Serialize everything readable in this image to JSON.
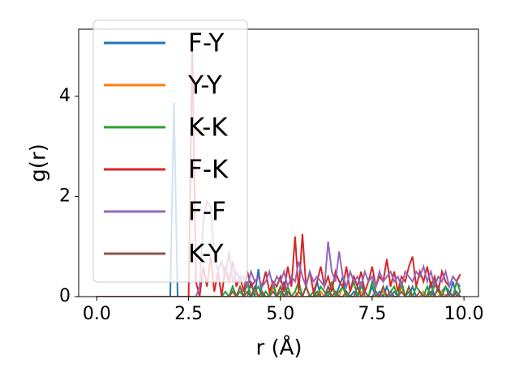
{
  "chart_data": {
    "type": "line",
    "xlabel": "r (Å)",
    "ylabel": "g(r)",
    "x": [
      0.0,
      0.1,
      0.2,
      0.3,
      0.4,
      0.5,
      0.6,
      0.7,
      0.8,
      0.9,
      1.0,
      1.1,
      1.2,
      1.3,
      1.4,
      1.5,
      1.6,
      1.7,
      1.8,
      1.9,
      2.0,
      2.1,
      2.2,
      2.3,
      2.4,
      2.5,
      2.6,
      2.7,
      2.8,
      2.9,
      3.0,
      3.1,
      3.2,
      3.3,
      3.4,
      3.5,
      3.6,
      3.7,
      3.8,
      3.9,
      4.0,
      4.1,
      4.2,
      4.3,
      4.4,
      4.5,
      4.6,
      4.7,
      4.8,
      4.9,
      5.0,
      5.1,
      5.2,
      5.3,
      5.4,
      5.5,
      5.6,
      5.7,
      5.8,
      5.9,
      6.0,
      6.1,
      6.2,
      6.3,
      6.4,
      6.5,
      6.6,
      6.7,
      6.8,
      6.9,
      7.0,
      7.1,
      7.2,
      7.3,
      7.4,
      7.5,
      7.6,
      7.7,
      7.8,
      7.9,
      8.0,
      8.1,
      8.2,
      8.3,
      8.4,
      8.5,
      8.6,
      8.7,
      8.8,
      8.9,
      9.0,
      9.1,
      9.2,
      9.3,
      9.4,
      9.5,
      9.6,
      9.7,
      9.8,
      9.9
    ],
    "series": [
      {
        "name": "F-Y",
        "color": "#1f77b4",
        "values": [
          0,
          0,
          0,
          0,
          0,
          0,
          0,
          0,
          0,
          0,
          0,
          0,
          0,
          0,
          0,
          0,
          0,
          0,
          0,
          0,
          0,
          3.87,
          0,
          0,
          0,
          0,
          0,
          0,
          0,
          0,
          0,
          0,
          0,
          0,
          0,
          0,
          0,
          0.2,
          0,
          0,
          0,
          0,
          0.3,
          0,
          0.55,
          0,
          0.1,
          0,
          0.2,
          0,
          0,
          0.3,
          0,
          0,
          0,
          0.1,
          0,
          0.2,
          0,
          0,
          0.3,
          0,
          0,
          0.1,
          0,
          0,
          0.2,
          0.4,
          0,
          0,
          0.1,
          0,
          0.3,
          0,
          0,
          0.2,
          0,
          0.1,
          0,
          0.2,
          0,
          0.1,
          0,
          0.3,
          0,
          0,
          0.2,
          0,
          0,
          0.1,
          0,
          0.3,
          0,
          0,
          0.1,
          0.2,
          0,
          0.3,
          0,
          0.1
        ]
      },
      {
        "name": "Y-Y",
        "color": "#ff7f0e",
        "values": [
          0,
          0,
          0,
          0,
          0,
          0,
          0,
          0,
          0,
          0,
          0,
          0,
          0,
          0,
          0,
          0,
          0,
          0,
          0,
          0,
          0,
          0,
          0,
          0,
          0,
          0,
          0,
          0,
          0,
          0,
          0,
          0,
          0,
          0,
          0,
          0,
          0,
          0,
          0,
          0,
          0,
          0,
          0,
          0.1,
          0,
          0,
          0,
          0,
          0.2,
          0,
          0,
          0,
          0,
          0,
          0.1,
          0,
          0,
          0,
          0,
          0,
          0,
          0.1,
          0,
          0,
          0,
          0,
          0,
          0.2,
          0,
          0,
          0,
          0,
          0.1,
          0,
          0,
          0,
          0,
          0,
          0.1,
          0,
          0,
          0,
          0,
          0.2,
          0,
          0,
          0,
          0,
          0,
          0.1,
          0,
          0,
          0,
          0,
          0.1,
          0,
          0,
          0,
          0,
          0
        ]
      },
      {
        "name": "K-K",
        "color": "#2ca02c",
        "values": [
          0,
          0,
          0,
          0,
          0,
          0,
          0,
          0,
          0,
          0,
          0,
          0,
          0,
          0,
          0,
          0,
          0,
          0,
          0,
          0,
          0,
          0,
          0,
          0,
          0,
          0,
          0,
          0,
          0,
          0,
          0,
          0,
          0,
          0,
          0,
          0.1,
          0,
          0.2,
          0,
          0.1,
          0,
          0.3,
          0,
          0.1,
          0.2,
          0,
          0.1,
          0,
          0.3,
          0,
          0.1,
          0,
          0.2,
          0,
          0.1,
          0.3,
          0,
          0.2,
          0,
          0.1,
          0,
          0.2,
          0.1,
          0,
          0.3,
          0,
          0.1,
          0.2,
          0,
          0.1,
          0.3,
          0,
          0.2,
          0.1,
          0,
          0.3,
          0.1,
          0,
          0.2,
          0,
          0.1,
          0.2,
          0,
          0.3,
          0,
          0.1,
          0,
          0.2,
          0.1,
          0,
          0.2,
          0,
          0.3,
          0.1,
          0,
          0.2,
          0.1,
          0,
          0.3,
          0.1
        ]
      },
      {
        "name": "F-K",
        "color": "#d62728",
        "values": [
          0,
          0,
          0,
          0,
          0,
          0,
          0,
          0,
          0,
          0,
          0,
          0,
          0,
          0,
          0,
          0,
          0,
          0,
          0,
          0,
          0,
          0,
          0,
          0,
          0,
          0,
          5.0,
          0.3,
          0,
          0.6,
          0.2,
          0.8,
          0.1,
          0.5,
          0,
          0.6,
          0.3,
          0.7,
          0.2,
          0.4,
          0.1,
          0.5,
          0.2,
          0.3,
          0.4,
          0.2,
          0.5,
          0.1,
          0.3,
          0.2,
          0.4,
          0.1,
          0.6,
          0.2,
          1.2,
          0.1,
          1.25,
          0.2,
          0.5,
          0.1,
          0.3,
          0.6,
          0.2,
          0.4,
          0.1,
          0.5,
          0.3,
          0.2,
          0.6,
          0.1,
          0.4,
          0.2,
          0.5,
          0.1,
          0.3,
          0.6,
          0.2,
          0.4,
          0.3,
          0.75,
          0.2,
          0.5,
          0.1,
          0.4,
          0.3,
          0.6,
          0.8,
          0.2,
          0.5,
          0.3,
          0.6,
          0.2,
          0.4,
          0.1,
          0.5,
          0.3,
          0.2,
          0.4,
          0.3,
          0.45
        ]
      },
      {
        "name": "F-F",
        "color": "#9467bd",
        "values": [
          0,
          0,
          0,
          0,
          0,
          0,
          0,
          0,
          0,
          0,
          0,
          0,
          0,
          0,
          0,
          0,
          0,
          0,
          0,
          0,
          0,
          0,
          0,
          0,
          0,
          0,
          0,
          0,
          0.2,
          1.5,
          1.9,
          1.8,
          0.8,
          0.5,
          0.7,
          0.4,
          0.9,
          0.3,
          0.5,
          0.3,
          0.4,
          0.2,
          0.5,
          0.3,
          0.4,
          0.2,
          0.3,
          0.5,
          0.2,
          0.4,
          0.3,
          0.5,
          0.2,
          0.4,
          0.3,
          0.7,
          0.4,
          0.2,
          0.5,
          0.3,
          0.4,
          0.3,
          0.2,
          1.1,
          0.5,
          0.3,
          0.9,
          0.4,
          0.2,
          0.5,
          0.3,
          0.4,
          0.2,
          0.5,
          0.3,
          0.4,
          0.2,
          0.5,
          0.3,
          0.4,
          0.5,
          0.3,
          0.4,
          0.2,
          0.5,
          0.4,
          0.3,
          0.5,
          0.4,
          0.6,
          0.3,
          0.5,
          0.2,
          0.4,
          0.3,
          0.5,
          0.2,
          0.4,
          0.3,
          0.2
        ]
      },
      {
        "name": "K-Y",
        "color": "#8c564b",
        "values": [
          0,
          0,
          0,
          0,
          0,
          0,
          0,
          0,
          0,
          0,
          0,
          0,
          0,
          0,
          0,
          0,
          0,
          0,
          0,
          0,
          0,
          0,
          0,
          0,
          0,
          0,
          0,
          0,
          0,
          0,
          0,
          0,
          0,
          0,
          0,
          0,
          0,
          0.1,
          0,
          0.2,
          0,
          0.1,
          0,
          0.2,
          0,
          0.1,
          0,
          0,
          0.1,
          0,
          0.2,
          0,
          0.1,
          0,
          0,
          0.1,
          0,
          0.2,
          0,
          0,
          0.1,
          0,
          0,
          0.2,
          0,
          0.1,
          0,
          0,
          0.1,
          0,
          0,
          0.2,
          0,
          0.1,
          0,
          0,
          0.1,
          0,
          0.2,
          0,
          0.1,
          0,
          0,
          0.1,
          0,
          0.2,
          0,
          0,
          0.1,
          0,
          0,
          0.1,
          0,
          0.2,
          0,
          0,
          0.1,
          0,
          0.1,
          0
        ]
      }
    ],
    "xlim": [
      -0.495,
      10.395
    ],
    "xticks": [
      {
        "value": 0,
        "label": "0.0"
      },
      {
        "value": 2.5,
        "label": "2.5"
      },
      {
        "value": 5,
        "label": "5.0"
      },
      {
        "value": 7.5,
        "label": "7.5"
      },
      {
        "value": 10,
        "label": "10.0"
      }
    ],
    "ylim": [
      0,
      5.34
    ],
    "yticks": [
      0,
      2,
      4
    ],
    "legend": "upper left"
  }
}
